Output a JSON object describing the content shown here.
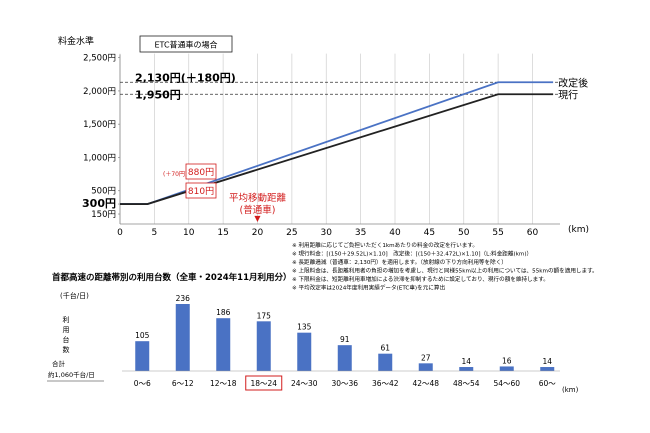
{
  "chart_data": [
    {
      "type": "line",
      "title": "ETC普通車の場合",
      "ylabel": "料金水準",
      "xlabel": "(km)",
      "x_ticks": [
        0,
        5,
        10,
        15,
        20,
        25,
        30,
        35,
        40,
        45,
        50,
        55,
        60
      ],
      "y_ticks": [
        {
          "value": 150,
          "label": "150円"
        },
        {
          "value": 300,
          "label": "300円"
        },
        {
          "value": 500,
          "label": "500円"
        },
        {
          "value": 1000,
          "label": "1,000円"
        },
        {
          "value": 1500,
          "label": "1,500円"
        },
        {
          "value": 2000,
          "label": "2,000円"
        },
        {
          "value": 2500,
          "label": "2,500円"
        }
      ],
      "xlim": [
        0,
        64
      ],
      "ylim": [
        0,
        2600
      ],
      "grid": "vertical",
      "series": [
        {
          "name": "改定後",
          "color": "#4a72c4",
          "x": [
            0,
            4,
            55,
            63
          ],
          "y": [
            300,
            300,
            2130,
            2130
          ]
        },
        {
          "name": "現行",
          "color": "#222222",
          "x": [
            0,
            4,
            55,
            63
          ],
          "y": [
            300,
            300,
            1950,
            1950
          ]
        }
      ],
      "reference_lines": [
        {
          "value": 2130,
          "label": "2,130円(＋180円)"
        },
        {
          "value": 1950,
          "label": "1,950円"
        }
      ],
      "marker": {
        "x": 20,
        "label_line1": "平均移動距離",
        "label_line2": "(普通車)"
      },
      "callouts": {
        "new_value": "880円",
        "old_value": "810円",
        "diff": "(＋70円)"
      },
      "notes": [
        "※ 利用距離に応じてご負担いただく1kmあたりの料金の改定を行います。",
        "※ 現行料金：[(150＋29.52L)×1.10]　改定後：[(150＋32.472L)×1.10]（L:料金距離(km)）",
        "※ 長距離逓減（普通車：2,130円）を適用します。（放射線の下り方向利用等を除く）",
        "※ 上限料金は、長距離利用者の負担の増加を考慮し、現行と同様55km以上の利用については、55kmの額を適用します。",
        "※ 下限料金は、短距離利用車増加による渋滞を抑制するために設定しており、現行の額を維持します。",
        "※ 平均改定率は2024年度利用実績データ(ETC車)を元に算出"
      ]
    },
    {
      "type": "bar",
      "title": "首都高速の距離帯別の利用台数（全車・2024年11月利用分）",
      "unit": "(千台/日)",
      "ylabel": "利用台数",
      "total_label_1": "合計",
      "total_label_2": "約1,060千台/日",
      "xlabel": "(km)",
      "categories": [
        "0～6",
        "6～12",
        "12～18",
        "18～24",
        "24～30",
        "30～36",
        "36～42",
        "42～48",
        "48～54",
        "54～60",
        "60～"
      ],
      "values": [
        105,
        236,
        186,
        175,
        135,
        91,
        61,
        27,
        14,
        16,
        14
      ],
      "highlight": "18～24",
      "color": "#4a72c4"
    }
  ]
}
